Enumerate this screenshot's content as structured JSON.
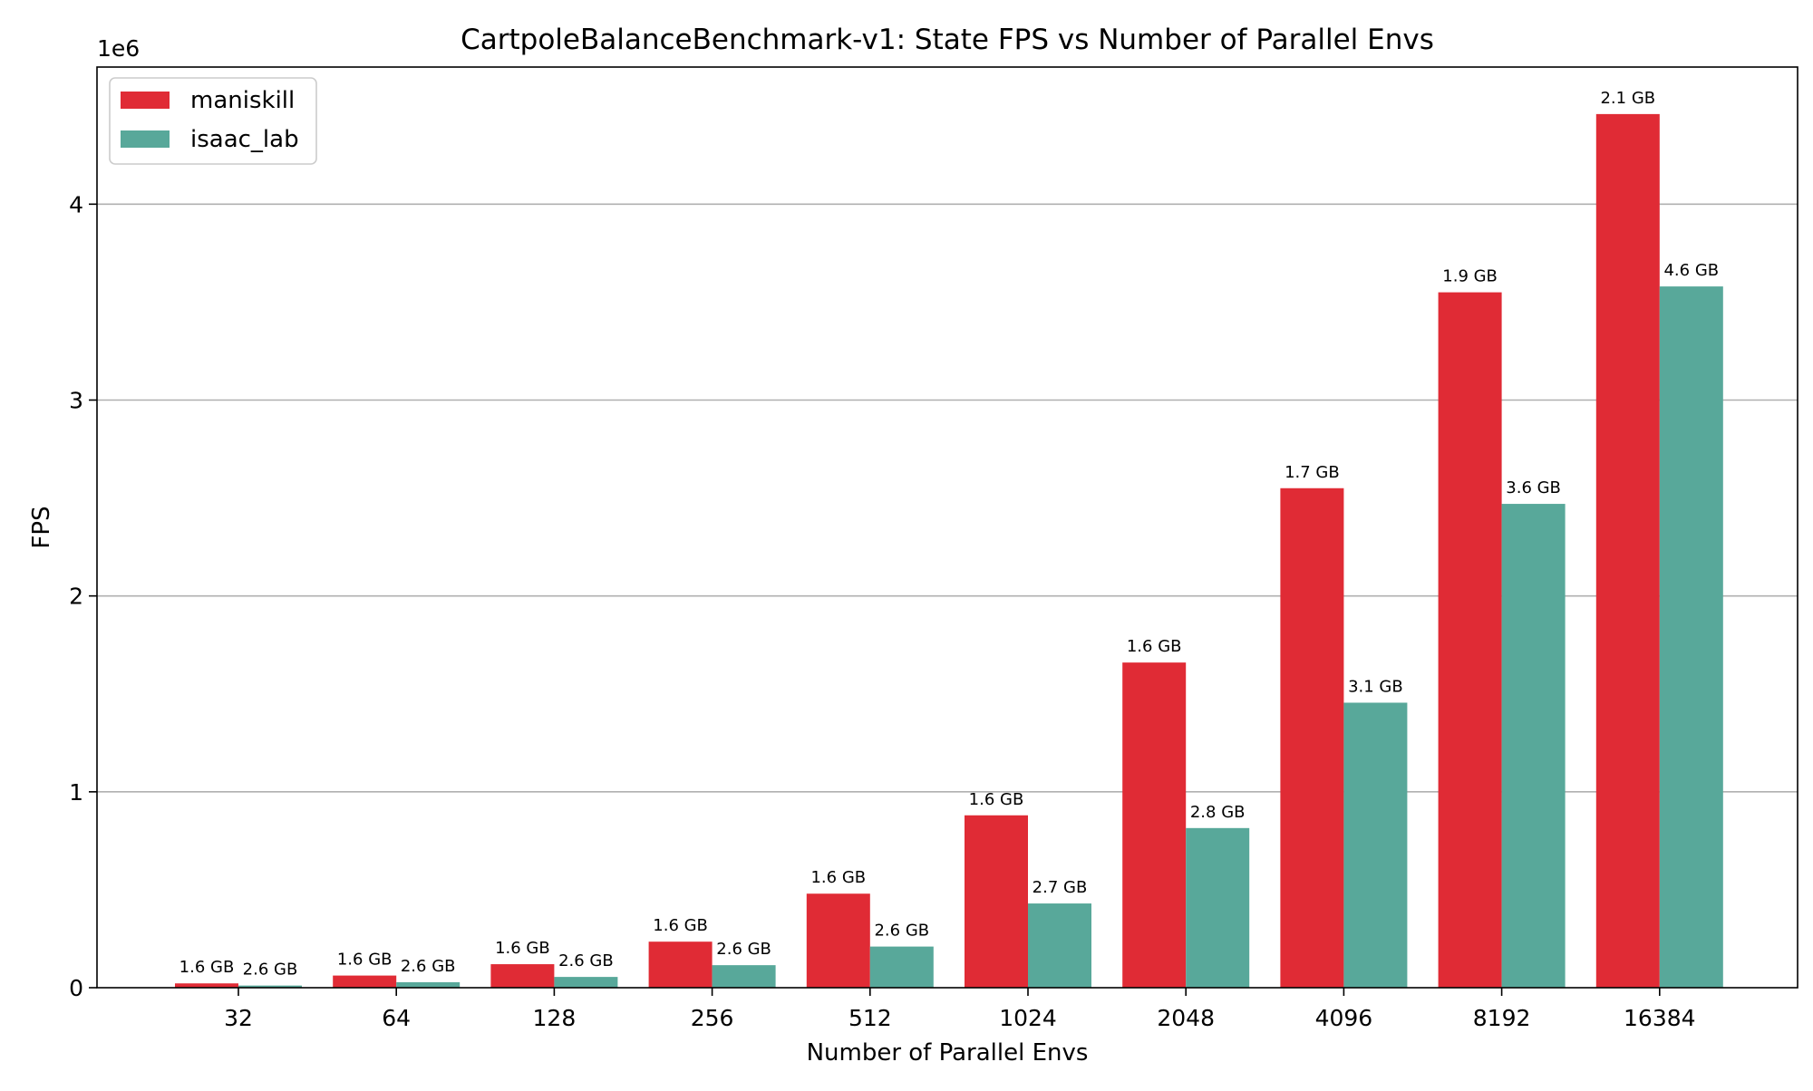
{
  "chart_data": {
    "type": "bar",
    "title": "CartpoleBalanceBenchmark-v1: State FPS vs Number of Parallel Envs",
    "xlabel": "Number of Parallel Envs",
    "ylabel": "FPS",
    "y_scale_label": "1e6",
    "ylim": [
      0,
      4.7
    ],
    "y_ticks": [
      0,
      1,
      2,
      3,
      4
    ],
    "grid": "y-major",
    "legend_position": "top-left",
    "categories": [
      "32",
      "64",
      "128",
      "256",
      "512",
      "1024",
      "2048",
      "4096",
      "8192",
      "16384"
    ],
    "series": [
      {
        "name": "maniskill",
        "color": "#e02b35",
        "values": [
          0.022,
          0.062,
          0.12,
          0.235,
          0.48,
          0.88,
          1.66,
          2.55,
          3.55,
          4.46
        ],
        "labels": [
          "1.6 GB",
          "1.6 GB",
          "1.6 GB",
          "1.6 GB",
          "1.6 GB",
          "1.6 GB",
          "1.6 GB",
          "1.7 GB",
          "1.9 GB",
          "2.1 GB"
        ]
      },
      {
        "name": "isaac_lab",
        "color": "#58a89a",
        "values": [
          0.011,
          0.028,
          0.055,
          0.115,
          0.21,
          0.43,
          0.815,
          1.455,
          2.47,
          3.58
        ],
        "labels": [
          "2.6 GB",
          "2.6 GB",
          "2.6 GB",
          "2.6 GB",
          "2.6 GB",
          "2.7 GB",
          "2.8 GB",
          "3.1 GB",
          "3.6 GB",
          "4.6 GB"
        ]
      }
    ]
  }
}
